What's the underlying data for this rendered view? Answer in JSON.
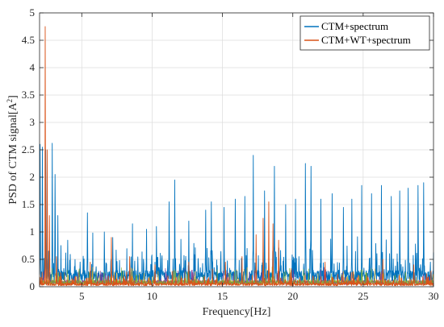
{
  "chart_data": {
    "type": "line",
    "xlabel": "Frequency[Hz]",
    "ylabel_text": "PSD of CTM signal[A",
    "ylabel_sup": "2",
    "ylabel_close": "]",
    "xlim": [
      2,
      30
    ],
    "ylim": [
      0,
      5
    ],
    "xticks": [
      5,
      10,
      15,
      20,
      25,
      30
    ],
    "yticks": [
      0,
      0.5,
      1,
      1.5,
      2,
      2.5,
      3,
      3.5,
      4,
      4.5,
      5
    ],
    "ytick_labels": [
      "0",
      "0.5",
      "1",
      "1.5",
      "2",
      "2.5",
      "3",
      "3.5",
      "4",
      "4.5",
      "5"
    ],
    "grid": true,
    "legend_position": "top-right",
    "series": [
      {
        "name": "CTM+spectrum",
        "color": "#0072BD",
        "baseline": 0.25,
        "noise": 0.45,
        "peaks": [
          [
            2.05,
            2.6
          ],
          [
            2.2,
            2.55
          ],
          [
            2.45,
            2.5
          ],
          [
            2.9,
            2.62
          ],
          [
            3.1,
            2.05
          ],
          [
            3.3,
            1.3
          ],
          [
            4.0,
            0.85
          ],
          [
            5.4,
            1.35
          ],
          [
            6.6,
            1.0
          ],
          [
            7.2,
            0.9
          ],
          [
            8.6,
            1.15
          ],
          [
            9.6,
            1.05
          ],
          [
            10.3,
            1.1
          ],
          [
            11.2,
            1.55
          ],
          [
            11.6,
            1.95
          ],
          [
            12.6,
            1.2
          ],
          [
            13.8,
            1.4
          ],
          [
            14.2,
            1.55
          ],
          [
            15.1,
            1.45
          ],
          [
            15.9,
            1.6
          ],
          [
            16.6,
            1.65
          ],
          [
            17.2,
            2.4
          ],
          [
            18.0,
            1.75
          ],
          [
            18.7,
            2.2
          ],
          [
            19.5,
            1.5
          ],
          [
            20.2,
            1.6
          ],
          [
            20.9,
            2.25
          ],
          [
            21.3,
            2.2
          ],
          [
            22.0,
            1.6
          ],
          [
            22.8,
            1.7
          ],
          [
            23.6,
            1.45
          ],
          [
            24.2,
            1.6
          ],
          [
            24.9,
            1.85
          ],
          [
            25.6,
            1.7
          ],
          [
            26.3,
            1.85
          ],
          [
            27.0,
            1.65
          ],
          [
            27.6,
            1.75
          ],
          [
            28.2,
            1.8
          ],
          [
            28.9,
            1.85
          ],
          [
            29.3,
            1.9
          ]
        ]
      },
      {
        "name": "CTM+WT+spectrum",
        "color": "#D95319",
        "baseline": 0.06,
        "noise": 0.14,
        "peaks": [
          [
            2.4,
            4.75
          ],
          [
            2.55,
            2.5
          ],
          [
            2.7,
            1.3
          ],
          [
            3.2,
            0.55
          ],
          [
            5.6,
            0.45
          ],
          [
            7.1,
            0.9
          ],
          [
            8.4,
            0.55
          ],
          [
            10.2,
            0.4
          ],
          [
            12.6,
            0.45
          ],
          [
            15.2,
            0.45
          ],
          [
            16.4,
            0.55
          ],
          [
            17.4,
            0.95
          ],
          [
            17.9,
            1.25
          ],
          [
            18.3,
            1.55
          ],
          [
            18.6,
            1.15
          ],
          [
            19.0,
            0.85
          ],
          [
            22.3,
            0.45
          ],
          [
            26.4,
            0.5
          ],
          [
            28.6,
            0.4
          ]
        ]
      }
    ],
    "extra_colors": [
      "#EDB120",
      "#7E2F8E",
      "#77AC30"
    ]
  }
}
